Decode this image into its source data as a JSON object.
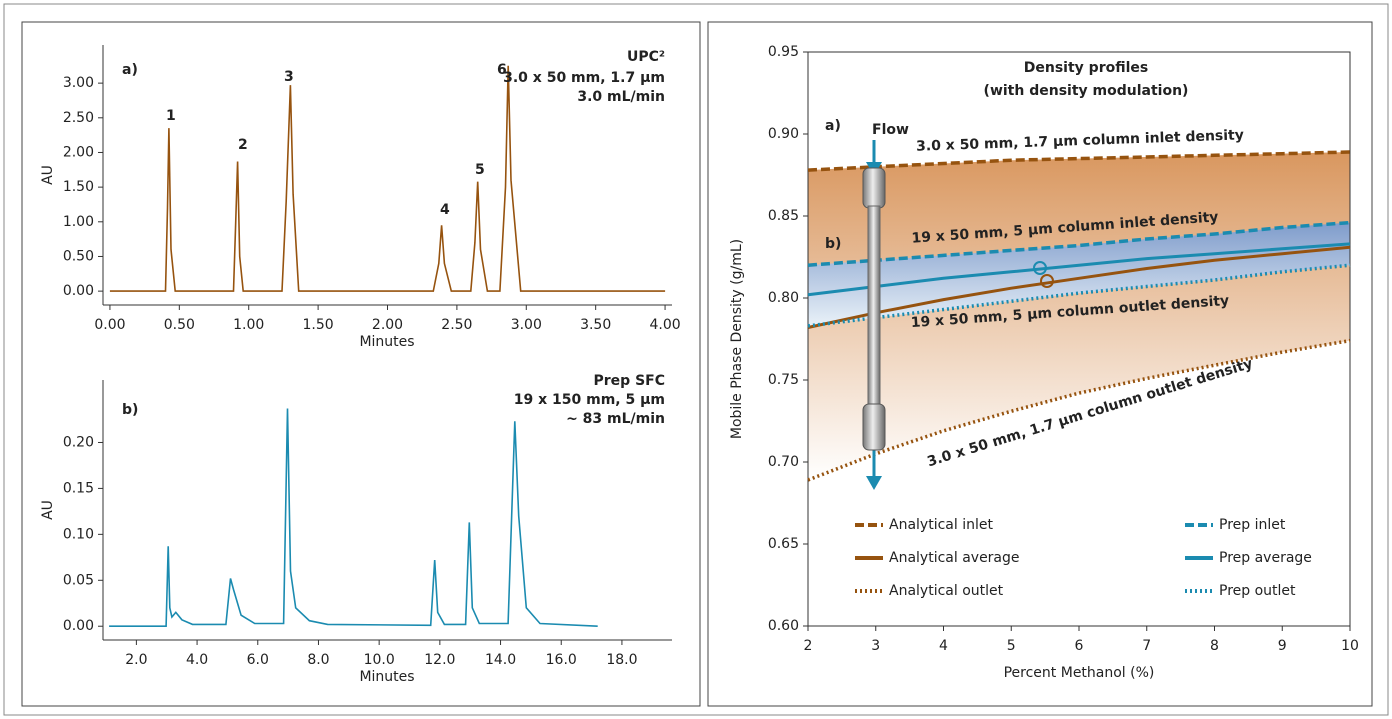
{
  "chart_data": [
    {
      "type": "line",
      "ylabel": "AU",
      "xlabel": "Minutes",
      "color": "#96530f",
      "x": [
        0,
        0.4,
        0.415,
        0.425,
        0.44,
        0.47,
        0.89,
        0.905,
        0.92,
        0.935,
        0.96,
        1.24,
        1.27,
        1.3,
        1.32,
        1.36,
        2.33,
        2.37,
        2.39,
        2.41,
        2.46,
        2.6,
        2.63,
        2.65,
        2.67,
        2.72,
        2.81,
        2.85,
        2.87,
        2.89,
        2.96,
        4.0
      ],
      "values": [
        0,
        0,
        1.2,
        2.35,
        0.6,
        0,
        0,
        0.9,
        1.87,
        0.5,
        0,
        0,
        1.3,
        2.97,
        1.4,
        0,
        0,
        0.4,
        0.95,
        0.4,
        0,
        0,
        0.7,
        1.58,
        0.6,
        0,
        0,
        1.5,
        3.25,
        1.6,
        0,
        0
      ],
      "xlim": [
        -0.05,
        4.05
      ],
      "xticks": [
        {
          "value": 0,
          "label": "0.00"
        },
        {
          "value": 0.5,
          "label": "0.50"
        },
        {
          "value": 1,
          "label": "1.00"
        },
        {
          "value": 1.5,
          "label": "1.50"
        },
        {
          "value": 2,
          "label": "2.00"
        },
        {
          "value": 2.5,
          "label": "2.50"
        },
        {
          "value": 3,
          "label": "3.00"
        },
        {
          "value": 3.5,
          "label": "3.50"
        },
        {
          "value": 4,
          "label": "4.00"
        }
      ],
      "ylim": [
        -0.2,
        3.55
      ],
      "yticks": [
        {
          "value": 0,
          "label": "0.00"
        },
        {
          "value": 0.5,
          "label": "0.50"
        },
        {
          "value": 1,
          "label": "1.00"
        },
        {
          "value": 1.5,
          "label": "1.50"
        },
        {
          "value": 2,
          "label": "2.00"
        },
        {
          "value": 2.5,
          "label": "2.50"
        },
        {
          "value": 3,
          "label": "3.00"
        }
      ],
      "annotations": [
        "a)",
        "UPC²",
        "3.0 x 50 mm, 1.7 µm",
        "3.0 mL/min",
        "1",
        "2",
        "3",
        "4",
        "5",
        "6"
      ]
    },
    {
      "type": "line",
      "ylabel": "AU",
      "xlabel": "Minutes",
      "color": "#1b8bb0",
      "x": [
        1.1,
        2.98,
        3.05,
        3.1,
        3.17,
        3.3,
        3.5,
        3.85,
        4.95,
        5.1,
        5.2,
        5.45,
        5.9,
        6.85,
        6.98,
        7.08,
        7.25,
        7.7,
        8.3,
        11.7,
        11.83,
        11.93,
        12.15,
        12.85,
        12.97,
        13.07,
        13.3,
        14.25,
        14.47,
        14.6,
        14.85,
        15.3,
        17.2
      ],
      "values": [
        0,
        0,
        0.087,
        0.02,
        0.01,
        0.015,
        0.007,
        0.002,
        0.002,
        0.052,
        0.04,
        0.012,
        0.003,
        0.003,
        0.237,
        0.06,
        0.02,
        0.006,
        0.002,
        0.001,
        0.072,
        0.015,
        0.002,
        0.002,
        0.113,
        0.02,
        0.003,
        0.003,
        0.223,
        0.12,
        0.02,
        0.003,
        0
      ],
      "xlim": [
        0.9,
        19.65
      ],
      "xticks": [
        {
          "value": 2,
          "label": "2.0"
        },
        {
          "value": 4,
          "label": "4.0"
        },
        {
          "value": 6,
          "label": "6.0"
        },
        {
          "value": 8,
          "label": "8.0"
        },
        {
          "value": 10,
          "label": "10.0"
        },
        {
          "value": 12,
          "label": "12.0"
        },
        {
          "value": 14,
          "label": "14.0"
        },
        {
          "value": 16,
          "label": "16.0"
        },
        {
          "value": 18,
          "label": "18.0"
        }
      ],
      "ylim": [
        -0.015,
        0.268
      ],
      "yticks": [
        {
          "value": 0,
          "label": "0.00"
        },
        {
          "value": 0.05,
          "label": "0.05"
        },
        {
          "value": 0.1,
          "label": "0.10"
        },
        {
          "value": 0.15,
          "label": "0.15"
        },
        {
          "value": 0.2,
          "label": "0.20"
        }
      ],
      "annotations": [
        "b)",
        "Prep SFC",
        "19 x 150 mm, 5 µm",
        "~ 83 mL/min"
      ]
    },
    {
      "type": "line",
      "title": "Density profiles",
      "subtitle": "(with density modulation)",
      "ylabel": "Mobile Phase Density (g/mL)",
      "xlabel": "Percent Methanol (%)",
      "x": [
        2,
        3,
        4,
        5,
        6,
        7,
        8,
        9,
        10
      ],
      "series": [
        {
          "name": "Analytical inlet",
          "color": "#96530f",
          "dash": "dashed",
          "values": [
            0.878,
            0.88,
            0.882,
            0.884,
            0.885,
            0.886,
            0.887,
            0.888,
            0.889
          ]
        },
        {
          "name": "Analytical average",
          "color": "#96530f",
          "dash": "solid",
          "values": [
            0.782,
            0.791,
            0.799,
            0.806,
            0.812,
            0.818,
            0.823,
            0.827,
            0.831
          ]
        },
        {
          "name": "Analytical outlet",
          "color": "#96530f",
          "dash": "dotted",
          "values": [
            0.689,
            0.705,
            0.719,
            0.731,
            0.742,
            0.751,
            0.759,
            0.767,
            0.774
          ]
        },
        {
          "name": "Prep inlet",
          "color": "#1b8bb0",
          "dash": "dashed",
          "values": [
            0.82,
            0.823,
            0.826,
            0.829,
            0.832,
            0.836,
            0.839,
            0.843,
            0.846
          ]
        },
        {
          "name": "Prep average",
          "color": "#1b8bb0",
          "dash": "solid",
          "values": [
            0.802,
            0.807,
            0.812,
            0.816,
            0.82,
            0.824,
            0.827,
            0.83,
            0.833
          ]
        },
        {
          "name": "Prep outlet",
          "color": "#1b8bb0",
          "dash": "dotted",
          "values": [
            0.783,
            0.788,
            0.793,
            0.798,
            0.803,
            0.807,
            0.811,
            0.816,
            0.82
          ]
        }
      ],
      "xlim": [
        2,
        10
      ],
      "xticks": [
        2,
        3,
        4,
        5,
        6,
        7,
        8,
        9,
        10
      ],
      "ylim": [
        0.6,
        0.95
      ],
      "yticks": [
        {
          "value": 0.6,
          "label": "0.60"
        },
        {
          "value": 0.65,
          "label": "0.65"
        },
        {
          "value": 0.7,
          "label": "0.70"
        },
        {
          "value": 0.75,
          "label": "0.75"
        },
        {
          "value": 0.8,
          "label": "0.80"
        },
        {
          "value": 0.85,
          "label": "0.85"
        },
        {
          "value": 0.9,
          "label": "0.90"
        },
        {
          "value": 0.95,
          "label": "0.95"
        }
      ],
      "legend": "lower center",
      "annotations": [
        "Flow",
        "a)",
        "b)",
        "3.0 x 50 mm, 1.7 µm column inlet density",
        "19 x  50 mm, 5 µm column inlet density",
        "19 x  50 mm, 5 µm column outlet density",
        "3.0 x 50 mm, 1.7 µm column outlet density"
      ]
    }
  ]
}
